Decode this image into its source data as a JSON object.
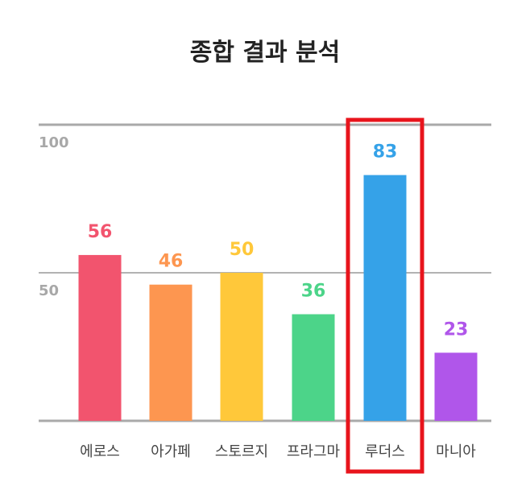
{
  "chart_data": {
    "type": "bar",
    "title": "종합 결과 분석",
    "categories": [
      "에로스",
      "아가페",
      "스토르지",
      "프라그마",
      "루더스",
      "마니아"
    ],
    "values": [
      56,
      46,
      50,
      36,
      83,
      23
    ],
    "colors": [
      "#f2546e",
      "#fd9650",
      "#ffc83a",
      "#4cd489",
      "#35a2e8",
      "#b056ea"
    ],
    "ylim": [
      0,
      100
    ],
    "yticks": [
      50,
      100
    ],
    "ytick_labels": [
      "50",
      "100"
    ],
    "grid": true,
    "highlight": {
      "category": "루더스",
      "color": "#e8141c"
    }
  }
}
